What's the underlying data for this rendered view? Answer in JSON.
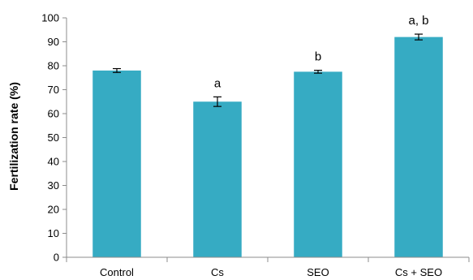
{
  "chart_data": {
    "type": "bar",
    "categories": [
      "Control",
      "Cs",
      "SEO",
      "Cs + SEO"
    ],
    "values": [
      78,
      65,
      77.5,
      92
    ],
    "error_bars": [
      0.8,
      2.0,
      0.6,
      1.2
    ],
    "annotations": [
      "",
      "a",
      "b",
      "a, b"
    ],
    "ylabel": "Fertilization rate (%)",
    "xlabel": "",
    "ylim": [
      0,
      100
    ],
    "yticks": [
      "0",
      "10",
      "20",
      "30",
      "40",
      "50",
      "60",
      "70",
      "80",
      "90",
      "100"
    ],
    "grid": false,
    "legend": "none",
    "colors": {
      "bar": "#36ABC3",
      "axis": "#8C8C8C",
      "error_bar": "#000000"
    }
  }
}
